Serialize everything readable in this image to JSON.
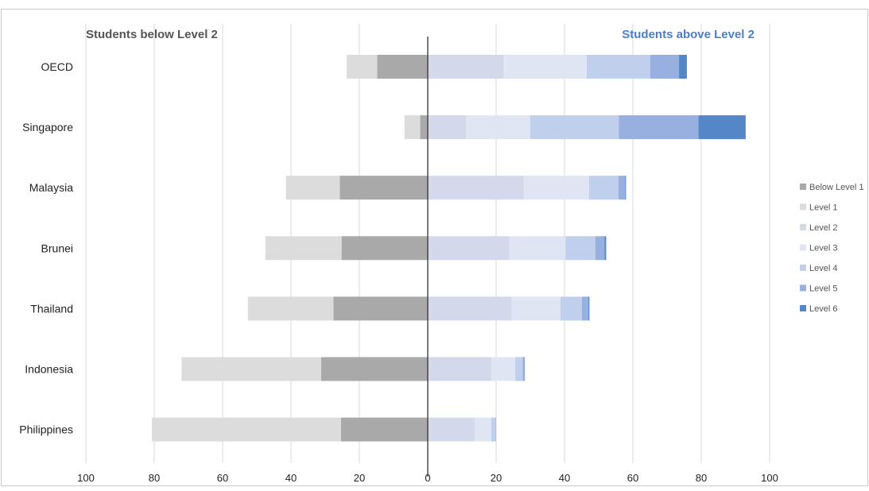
{
  "chart_data": {
    "type": "bar",
    "orientation": "horizontal",
    "stacking": "diverging",
    "left_heading": "Students below Level 2",
    "right_heading": "Students above Level 2",
    "categories": [
      "OECD",
      "Singapore",
      "Malaysia",
      "Brunei",
      "Thailand",
      "Indonesia",
      "Philippines"
    ],
    "xlim": [
      -100,
      100
    ],
    "x_ticks": [
      -100,
      -80,
      -60,
      -40,
      -20,
      0,
      20,
      40,
      60,
      80,
      100
    ],
    "x_tick_labels": [
      "100",
      "80",
      "60",
      "40",
      "20",
      "0",
      "20",
      "40",
      "60",
      "80",
      "100"
    ],
    "grid": true,
    "legend_position": "right",
    "series": [
      {
        "name": "Below Level 1",
        "side": "left",
        "color": "#a9a9a9",
        "values": [
          14.8,
          2.2,
          25.7,
          25.2,
          27.6,
          31.2,
          25.4
        ]
      },
      {
        "name": "Level 1",
        "side": "left",
        "color": "#dcdcdc",
        "values": [
          8.9,
          4.6,
          15.8,
          22.3,
          25.0,
          40.8,
          55.3
        ]
      },
      {
        "name": "Level 2",
        "side": "right",
        "color": "#d3d9ea",
        "values": [
          22.2,
          11.2,
          28.1,
          23.9,
          24.6,
          18.6,
          13.7
        ]
      },
      {
        "name": "Level 3",
        "side": "right",
        "color": "#e0e5f4",
        "values": [
          24.3,
          18.8,
          19.1,
          16.4,
          14.2,
          7.0,
          4.9
        ]
      },
      {
        "name": "Level 4",
        "side": "right",
        "color": "#c0cfec",
        "values": [
          18.6,
          25.9,
          8.6,
          8.7,
          6.3,
          2.2,
          1.1
        ]
      },
      {
        "name": "Level 5",
        "side": "right",
        "color": "#97b0df",
        "values": [
          8.4,
          23.3,
          2.0,
          2.7,
          1.9,
          0.5,
          0.2
        ]
      },
      {
        "name": "Level 6",
        "side": "right",
        "color": "#5586c8",
        "values": [
          2.3,
          13.8,
          0.2,
          0.5,
          0.3,
          0.1,
          0.0
        ]
      }
    ]
  },
  "colors": {
    "left_heading": "#555555",
    "right_heading": "#4a7ec9",
    "gridline": "#d9d9d9",
    "zero_line": "#333333",
    "frame": "#c8c8c8"
  }
}
